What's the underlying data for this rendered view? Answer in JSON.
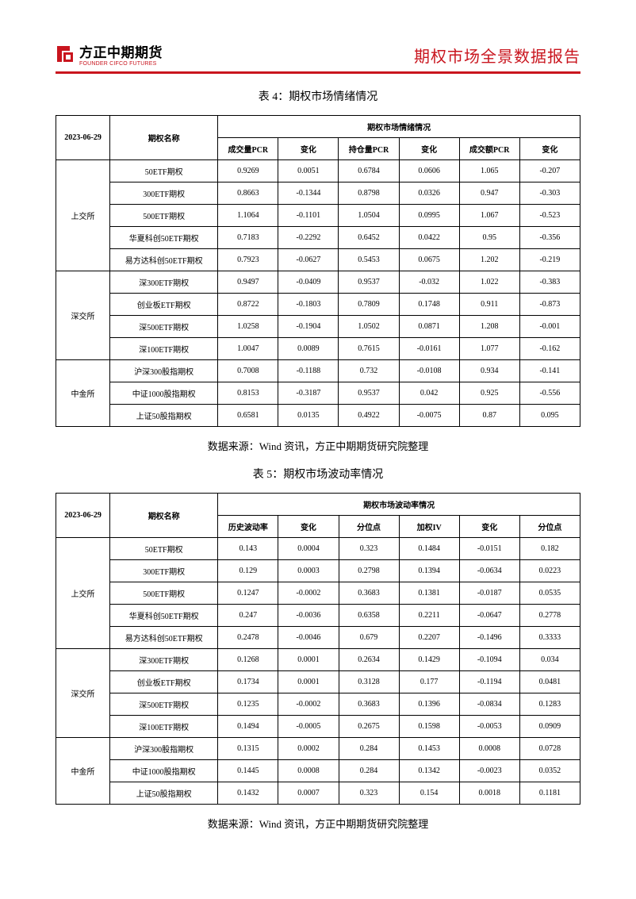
{
  "header": {
    "company_cn": "方正中期期货",
    "company_en": "FOUNDER CIFCO FUTURES",
    "report_title": "期权市场全景数据报告"
  },
  "table4": {
    "title": "表 4：期权市场情绪情况",
    "date_header": "2023-06-29",
    "name_header": "期权名称",
    "group_header": "期权市场情绪情况",
    "columns": [
      "成交量PCR",
      "变化",
      "持仓量PCR",
      "变化",
      "成交额PCR",
      "变化"
    ],
    "groups": [
      {
        "exchange": "上交所",
        "rows": [
          {
            "name": "50ETF期权",
            "v": [
              "0.9269",
              "0.0051",
              "0.6784",
              "0.0606",
              "1.065",
              "-0.207"
            ]
          },
          {
            "name": "300ETF期权",
            "v": [
              "0.8663",
              "-0.1344",
              "0.8798",
              "0.0326",
              "0.947",
              "-0.303"
            ]
          },
          {
            "name": "500ETF期权",
            "v": [
              "1.1064",
              "-0.1101",
              "1.0504",
              "0.0995",
              "1.067",
              "-0.523"
            ]
          },
          {
            "name": "华夏科创50ETF期权",
            "v": [
              "0.7183",
              "-0.2292",
              "0.6452",
              "0.0422",
              "0.95",
              "-0.356"
            ]
          },
          {
            "name": "易方达科创50ETF期权",
            "v": [
              "0.7923",
              "-0.0627",
              "0.5453",
              "0.0675",
              "1.202",
              "-0.219"
            ]
          }
        ]
      },
      {
        "exchange": "深交所",
        "rows": [
          {
            "name": "深300ETF期权",
            "v": [
              "0.9497",
              "-0.0409",
              "0.9537",
              "-0.032",
              "1.022",
              "-0.383"
            ]
          },
          {
            "name": "创业板ETF期权",
            "v": [
              "0.8722",
              "-0.1803",
              "0.7809",
              "0.1748",
              "0.911",
              "-0.873"
            ]
          },
          {
            "name": "深500ETF期权",
            "v": [
              "1.0258",
              "-0.1904",
              "1.0502",
              "0.0871",
              "1.208",
              "-0.001"
            ]
          },
          {
            "name": "深100ETF期权",
            "v": [
              "1.0047",
              "0.0089",
              "0.7615",
              "-0.0161",
              "1.077",
              "-0.162"
            ]
          }
        ]
      },
      {
        "exchange": "中金所",
        "rows": [
          {
            "name": "沪深300股指期权",
            "v": [
              "0.7008",
              "-0.1188",
              "0.732",
              "-0.0108",
              "0.934",
              "-0.141"
            ]
          },
          {
            "name": "中证1000股指期权",
            "v": [
              "0.8153",
              "-0.3187",
              "0.9537",
              "0.042",
              "0.925",
              "-0.556"
            ]
          },
          {
            "name": "上证50股指期权",
            "v": [
              "0.6581",
              "0.0135",
              "0.4922",
              "-0.0075",
              "0.87",
              "0.095"
            ]
          }
        ]
      }
    ]
  },
  "source_note": "数据来源：Wind 资讯，方正中期期货研究院整理",
  "table5": {
    "title": "表 5：期权市场波动率情况",
    "date_header": "2023-06-29",
    "name_header": "期权名称",
    "group_header": "期权市场波动率情况",
    "columns": [
      "历史波动率",
      "变化",
      "分位点",
      "加权IV",
      "变化",
      "分位点"
    ],
    "groups": [
      {
        "exchange": "上交所",
        "rows": [
          {
            "name": "50ETF期权",
            "v": [
              "0.143",
              "0.0004",
              "0.323",
              "0.1484",
              "-0.0151",
              "0.182"
            ]
          },
          {
            "name": "300ETF期权",
            "v": [
              "0.129",
              "0.0003",
              "0.2798",
              "0.1394",
              "-0.0634",
              "0.0223"
            ]
          },
          {
            "name": "500ETF期权",
            "v": [
              "0.1247",
              "-0.0002",
              "0.3683",
              "0.1381",
              "-0.0187",
              "0.0535"
            ]
          },
          {
            "name": "华夏科创50ETF期权",
            "v": [
              "0.247",
              "-0.0036",
              "0.6358",
              "0.2211",
              "-0.0647",
              "0.2778"
            ]
          },
          {
            "name": "易方达科创50ETF期权",
            "v": [
              "0.2478",
              "-0.0046",
              "0.679",
              "0.2207",
              "-0.1496",
              "0.3333"
            ]
          }
        ]
      },
      {
        "exchange": "深交所",
        "rows": [
          {
            "name": "深300ETF期权",
            "v": [
              "0.1268",
              "0.0001",
              "0.2634",
              "0.1429",
              "-0.1094",
              "0.034"
            ]
          },
          {
            "name": "创业板ETF期权",
            "v": [
              "0.1734",
              "0.0001",
              "0.3128",
              "0.177",
              "-0.1194",
              "0.0481"
            ]
          },
          {
            "name": "深500ETF期权",
            "v": [
              "0.1235",
              "-0.0002",
              "0.3683",
              "0.1396",
              "-0.0834",
              "0.1283"
            ]
          },
          {
            "name": "深100ETF期权",
            "v": [
              "0.1494",
              "-0.0005",
              "0.2675",
              "0.1598",
              "-0.0053",
              "0.0909"
            ]
          }
        ]
      },
      {
        "exchange": "中金所",
        "rows": [
          {
            "name": "沪深300股指期权",
            "v": [
              "0.1315",
              "0.0002",
              "0.284",
              "0.1453",
              "0.0008",
              "0.0728"
            ]
          },
          {
            "name": "中证1000股指期权",
            "v": [
              "0.1445",
              "0.0008",
              "0.284",
              "0.1342",
              "-0.0023",
              "0.0352"
            ]
          },
          {
            "name": "上证50股指期权",
            "v": [
              "0.1432",
              "0.0007",
              "0.323",
              "0.154",
              "0.0018",
              "0.1181"
            ]
          }
        ]
      }
    ]
  },
  "colors": {
    "brand_red": "#c9151e",
    "text": "#000000",
    "bg": "#ffffff",
    "border": "#000000"
  }
}
